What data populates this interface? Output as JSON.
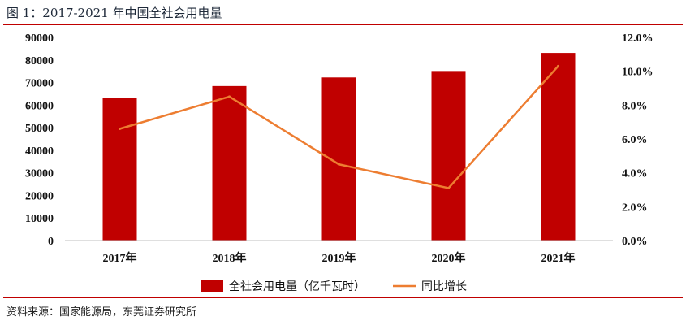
{
  "figure_title": "图 1：2017-2021 年中国全社会用电量",
  "source": "资料来源：国家能源局，东莞证券研究所",
  "colors": {
    "bar": "#c00000",
    "line": "#ed7d31",
    "rule": "#c00000"
  },
  "chart_data": {
    "type": "bar",
    "categories": [
      "2017年",
      "2018年",
      "2019年",
      "2020年",
      "2021年"
    ],
    "series": [
      {
        "name": "全社会用电量（亿千瓦时）",
        "type": "bar",
        "axis": "left",
        "values": [
          63077,
          68449,
          72255,
          75110,
          83128
        ]
      },
      {
        "name": "同比增长",
        "type": "line",
        "axis": "right",
        "values": [
          6.6,
          8.5,
          4.5,
          3.1,
          10.3
        ]
      }
    ],
    "y_left": {
      "min": 0,
      "max": 90000,
      "step": 10000,
      "tick_labels": [
        "0",
        "10000",
        "20000",
        "30000",
        "40000",
        "50000",
        "60000",
        "70000",
        "80000",
        "90000"
      ]
    },
    "y_right": {
      "min": 0,
      "max": 12,
      "step": 2,
      "tick_labels": [
        "0.0%",
        "2.0%",
        "4.0%",
        "6.0%",
        "8.0%",
        "10.0%",
        "12.0%"
      ]
    },
    "grid": false,
    "legend_position": "bottom"
  }
}
